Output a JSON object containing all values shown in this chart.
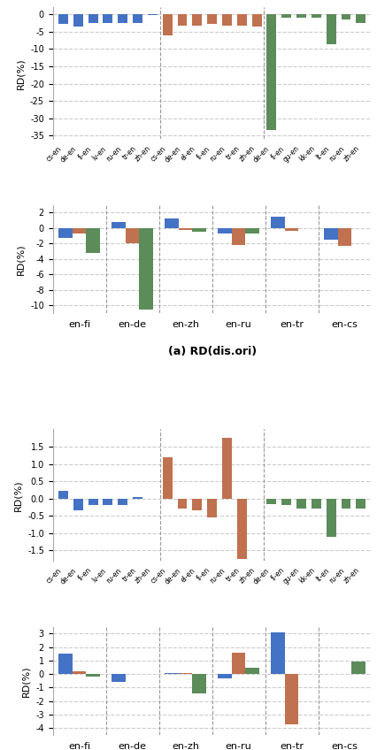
{
  "colors": {
    "blue": "#4472C4",
    "orange": "#C0714F",
    "green": "#5B8C5A"
  },
  "xlabels_top": [
    "cs-en",
    "de-en",
    "fi-en",
    "lv-en",
    "ru-en",
    "tr-en",
    "zh-en",
    "cs-en",
    "de-en",
    "el-en",
    "fi-en",
    "ru-en",
    "tr-en",
    "zh-en",
    "de-en",
    "fi-en",
    "gu-en",
    "kk-en",
    "lt-en",
    "ru-en",
    "zh-en"
  ],
  "chart_a_top": {
    "bars": [
      {
        "x": 0,
        "val": -2.8,
        "color": "blue"
      },
      {
        "x": 1,
        "val": -3.5,
        "color": "blue"
      },
      {
        "x": 2,
        "val": -2.5,
        "color": "blue"
      },
      {
        "x": 3,
        "val": -2.5,
        "color": "blue"
      },
      {
        "x": 4,
        "val": -2.5,
        "color": "blue"
      },
      {
        "x": 5,
        "val": -2.5,
        "color": "blue"
      },
      {
        "x": 6,
        "val": -0.2,
        "color": "blue"
      },
      {
        "x": 7,
        "val": -6.0,
        "color": "orange"
      },
      {
        "x": 8,
        "val": -3.2,
        "color": "orange"
      },
      {
        "x": 9,
        "val": -3.2,
        "color": "orange"
      },
      {
        "x": 10,
        "val": -2.8,
        "color": "orange"
      },
      {
        "x": 11,
        "val": -3.2,
        "color": "orange"
      },
      {
        "x": 12,
        "val": -3.2,
        "color": "orange"
      },
      {
        "x": 13,
        "val": -3.5,
        "color": "orange"
      },
      {
        "x": 14,
        "val": -33.5,
        "color": "green"
      },
      {
        "x": 15,
        "val": -1.0,
        "color": "green"
      },
      {
        "x": 16,
        "val": -1.0,
        "color": "green"
      },
      {
        "x": 17,
        "val": -1.0,
        "color": "green"
      },
      {
        "x": 18,
        "val": -8.5,
        "color": "green"
      },
      {
        "x": 19,
        "val": -1.5,
        "color": "green"
      },
      {
        "x": 20,
        "val": -2.5,
        "color": "green"
      }
    ],
    "vlines": [
      6.5,
      13.5
    ],
    "ylim": [
      -36,
      2
    ],
    "yticks": [
      0,
      -5,
      -10,
      -15,
      -20,
      -25,
      -30,
      -35
    ]
  },
  "chart_a_bottom": {
    "groups": [
      "en-fi",
      "en-de",
      "en-zh",
      "en-ru",
      "en-tr",
      "en-cs"
    ],
    "blue": [
      -1.3,
      0.8,
      1.3,
      -0.7,
      1.5,
      -1.5
    ],
    "orange": [
      -0.7,
      -2.0,
      -0.2,
      -2.2,
      -0.3,
      -2.3
    ],
    "green": [
      -3.2,
      -10.5,
      -0.5,
      -0.7,
      null,
      null
    ],
    "ylim": [
      -11,
      3
    ],
    "yticks": [
      2,
      0,
      -2,
      -4,
      -6,
      -8,
      -10
    ]
  },
  "chart_b_top": {
    "bars": [
      {
        "x": 0,
        "val": 0.22,
        "color": "blue"
      },
      {
        "x": 1,
        "val": -0.35,
        "color": "blue"
      },
      {
        "x": 2,
        "val": -0.2,
        "color": "blue"
      },
      {
        "x": 3,
        "val": -0.2,
        "color": "blue"
      },
      {
        "x": 4,
        "val": -0.2,
        "color": "blue"
      },
      {
        "x": 5,
        "val": 0.05,
        "color": "blue"
      },
      {
        "x": 7,
        "val": 1.2,
        "color": "orange"
      },
      {
        "x": 8,
        "val": -0.3,
        "color": "orange"
      },
      {
        "x": 9,
        "val": -0.35,
        "color": "orange"
      },
      {
        "x": 10,
        "val": -0.55,
        "color": "orange"
      },
      {
        "x": 11,
        "val": 1.75,
        "color": "orange"
      },
      {
        "x": 12,
        "val": -1.75,
        "color": "orange"
      },
      {
        "x": 14,
        "val": -0.15,
        "color": "green"
      },
      {
        "x": 15,
        "val": -0.2,
        "color": "green"
      },
      {
        "x": 16,
        "val": -0.3,
        "color": "green"
      },
      {
        "x": 17,
        "val": -0.3,
        "color": "green"
      },
      {
        "x": 18,
        "val": -1.1,
        "color": "green"
      },
      {
        "x": 19,
        "val": -0.3,
        "color": "green"
      },
      {
        "x": 20,
        "val": -0.3,
        "color": "green"
      }
    ],
    "vlines": [
      6.5,
      13.5
    ],
    "ylim": [
      -1.8,
      2.0
    ],
    "yticks": [
      1.5,
      1.0,
      0.5,
      0.0,
      -0.5,
      -1.0,
      -1.5
    ]
  },
  "chart_b_bottom": {
    "groups": [
      "en-fi",
      "en-de",
      "en-zh",
      "en-ru",
      "en-tr",
      "en-cs"
    ],
    "blue": [
      1.5,
      -0.6,
      0.1,
      -0.3,
      3.1,
      null
    ],
    "orange": [
      0.2,
      null,
      0.05,
      1.6,
      -3.7,
      null
    ],
    "green": [
      -0.2,
      null,
      -1.4,
      0.5,
      null,
      0.9
    ],
    "ylim": [
      -4.5,
      3.5
    ],
    "yticks": [
      3,
      2,
      1,
      0,
      -1,
      -2,
      -3,
      -4
    ]
  }
}
